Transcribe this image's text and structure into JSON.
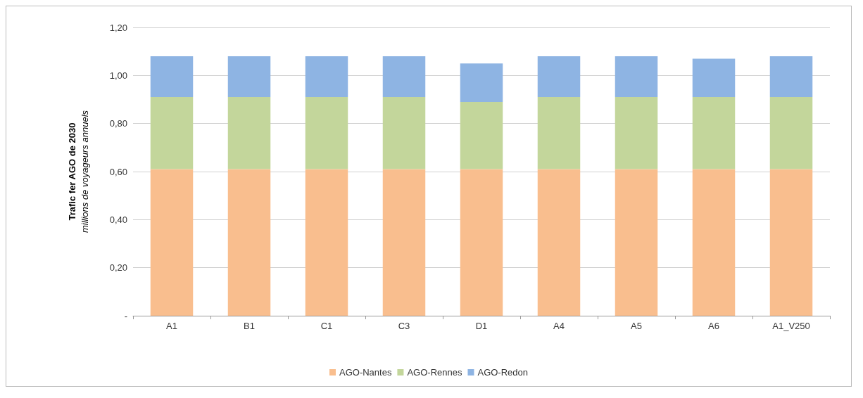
{
  "chart_data": {
    "type": "bar",
    "stacked": true,
    "ylabel": "Trafic fer AGO de 2030\nmillions de voyageurs annuels",
    "categories": [
      "A1",
      "B1",
      "C1",
      "C3",
      "D1",
      "A4",
      "A5",
      "A6",
      "A1_V250"
    ],
    "series": [
      {
        "name": "AGO-Nantes",
        "color": "#f9be8e",
        "values": [
          0.61,
          0.61,
          0.61,
          0.61,
          0.61,
          0.61,
          0.61,
          0.61,
          0.61
        ]
      },
      {
        "name": "AGO-Rennes",
        "color": "#c3d69b",
        "values": [
          0.3,
          0.3,
          0.3,
          0.3,
          0.28,
          0.3,
          0.3,
          0.3,
          0.3
        ]
      },
      {
        "name": "AGO-Redon",
        "color": "#8eb4e3",
        "values": [
          0.17,
          0.17,
          0.17,
          0.17,
          0.16,
          0.17,
          0.17,
          0.16,
          0.17
        ]
      }
    ],
    "ylim": [
      0,
      1.2
    ],
    "yticks": [
      {
        "value": 0,
        "label": "-"
      },
      {
        "value": 0.2,
        "label": "0,20"
      },
      {
        "value": 0.4,
        "label": "0,40"
      },
      {
        "value": 0.6,
        "label": "0,60"
      },
      {
        "value": 0.8,
        "label": "0,80"
      },
      {
        "value": 1.0,
        "label": "1,00"
      },
      {
        "value": 1.2,
        "label": "1,20"
      }
    ],
    "grid": "y",
    "legend": "bottom"
  }
}
